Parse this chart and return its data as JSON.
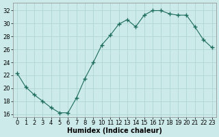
{
  "x": [
    0,
    1,
    2,
    3,
    4,
    5,
    6,
    7,
    8,
    9,
    10,
    11,
    12,
    13,
    14,
    15,
    16,
    17,
    18,
    19,
    20,
    21,
    22,
    23
  ],
  "y": [
    22.3,
    20.2,
    19.0,
    18.0,
    17.0,
    16.2,
    16.2,
    18.5,
    21.5,
    24.0,
    26.7,
    28.2,
    29.9,
    30.6,
    29.5,
    31.3,
    32.0,
    32.0,
    31.5,
    31.3,
    31.3,
    29.5,
    27.5,
    26.3
  ],
  "line_color": "#1a6b5a",
  "marker": "+",
  "marker_size": 4,
  "bg_color": "#cdeaea",
  "grid_color": "#b0d4d4",
  "xlabel": "Humidex (Indice chaleur)",
  "xlabel_fontsize": 7,
  "ylabel_ticks": [
    16,
    18,
    20,
    22,
    24,
    26,
    28,
    30,
    32
  ],
  "xtick_labels": [
    "0",
    "1",
    "2",
    "3",
    "4",
    "5",
    "6",
    "7",
    "8",
    "9",
    "10",
    "11",
    "12",
    "13",
    "14",
    "15",
    "16",
    "17",
    "18",
    "19",
    "20",
    "21",
    "22",
    "23"
  ],
  "ylim": [
    15.5,
    33.2
  ],
  "xlim": [
    -0.5,
    23.5
  ],
  "tick_fontsize": 6
}
